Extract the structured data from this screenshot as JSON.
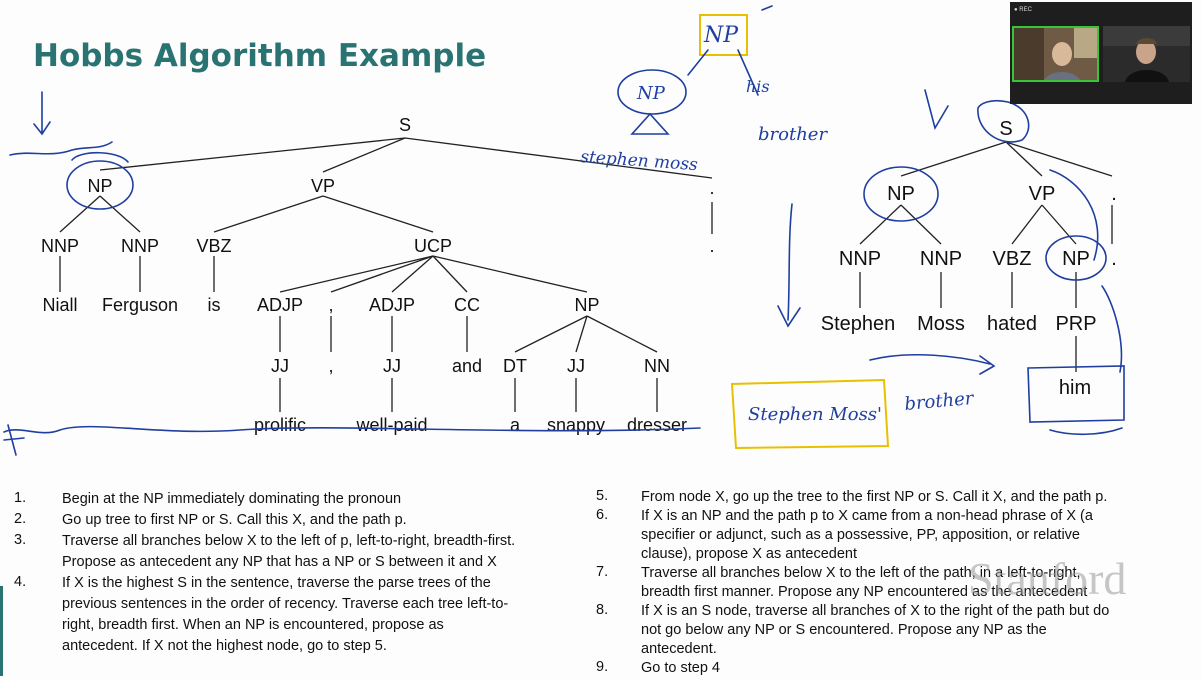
{
  "slide": {
    "title": "Hobbs Algorithm Example"
  },
  "tree1": {
    "nodes": {
      "S": "S",
      "NP": "NP",
      "VP": "VP",
      "PUNCT": ".",
      "NNP1": "NNP",
      "NNP2": "NNP",
      "VBZ": "VBZ",
      "UCP": "UCP",
      "W_Niall": "Niall",
      "W_Ferguson": "Ferguson",
      "W_is": "is",
      "ADJP1": "ADJP",
      "COMMA": ",",
      "ADJP2": "ADJP",
      "CC": "CC",
      "NP2": "NP",
      "JJ1": "JJ",
      "COMMA2": ",",
      "JJ2": "JJ",
      "W_and": "and",
      "DT": "DT",
      "JJ3": "JJ",
      "NN": "NN",
      "W_dot": ".",
      "W_prolific": "prolific",
      "W_wellpaid": "well-paid",
      "W_a": "a",
      "W_snappy": "snappy",
      "W_dresser": "dresser"
    }
  },
  "tree2": {
    "nodes": {
      "S": "S",
      "NP": "NP",
      "VP": "VP",
      "PUNCT": ".",
      "NNP1": "NNP",
      "NNP2": "NNP",
      "VBZ": "VBZ",
      "NP2": "NP",
      "PUNCT2": ".",
      "W_Stephen": "Stephen",
      "W_Moss": "Moss",
      "W_hated": "hated",
      "PRP": "PRP",
      "W_him": "him"
    }
  },
  "annotations": {
    "np_top": "NP",
    "np_left": "NP",
    "stephen_moss": "stephen moss",
    "his": "his",
    "brother": "brother",
    "stephen_moss_box": "Stephen Moss'",
    "brother2": "brother"
  },
  "steps_left": [
    {
      "num": "1.",
      "lines": [
        "Begin at the NP immediately dominating the pronoun"
      ]
    },
    {
      "num": "2.",
      "lines": [
        "Go up tree to first NP or S.  Call this X, and the path p."
      ]
    },
    {
      "num": "3.",
      "lines": [
        "Traverse all branches below X to the left of p, left-to-right, breadth-first.",
        "Propose as antecedent any NP that has a NP or S between it and X"
      ]
    },
    {
      "num": "4.",
      "lines": [
        "If X is the highest S in the sentence, traverse the parse trees of the",
        "previous sentences in the order of recency.  Traverse each tree left-to-",
        "right, breadth first.  When an NP is encountered, propose as",
        "antecedent.  If X not the highest node, go to step 5."
      ]
    }
  ],
  "steps_right": [
    {
      "num": "5.",
      "lines": [
        "From node X, go up the tree to the first NP or S.  Call it X, and the path p."
      ]
    },
    {
      "num": "6.",
      "lines": [
        "If X is an NP and the path p to X came from a non-head phrase of X (a",
        "specifier or adjunct, such as a possessive, PP, apposition, or relative",
        "clause), propose X as antecedent"
      ]
    },
    {
      "num": "7.",
      "lines": [
        "Traverse all branches below X to the left of the path, in a left-to-right,",
        "breadth first manner.  Propose any NP encountered as the antecedent"
      ]
    },
    {
      "num": "8.",
      "lines": [
        "If X is an S node, traverse all branches of X to the right of the path  but do",
        "not go below any NP or S encountered.  Propose any NP as the",
        "antecedent."
      ]
    },
    {
      "num": "9.",
      "lines": [
        "Go to step 4"
      ]
    }
  ],
  "watermark": "Stanford",
  "video": {
    "recording_label": "● REC",
    "colors": {
      "active_border": "#39c43a",
      "panel_bg": "#1e1e1e"
    }
  },
  "colors": {
    "title": "#2a7373",
    "ink": "#1f3fa0",
    "highlight": "#e8c000"
  }
}
